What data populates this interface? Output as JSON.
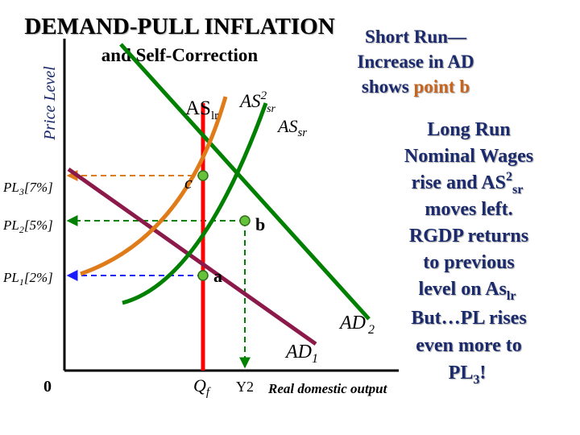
{
  "title": {
    "main": "DEMAND-PULL INFLATION",
    "sub": "and Self-Correction"
  },
  "axes": {
    "ylabel": "Price Level",
    "xlabel": "Real domestic output",
    "origin": "0"
  },
  "price_levels": {
    "pl3": {
      "base": "PL",
      "sub": "3",
      "rest": "[7%]"
    },
    "pl2": {
      "base": "PL",
      "sub": "2",
      "rest": "[5%]"
    },
    "pl1": {
      "base": "PL",
      "sub": "1",
      "rest": "[2%]"
    }
  },
  "output_levels": {
    "qf": {
      "base": "Q",
      "sub": "f"
    },
    "y2": "Y2"
  },
  "curves": {
    "aslr": {
      "base": "AS",
      "sub": "lr"
    },
    "as2sr": {
      "base": "AS",
      "sup": "2",
      "sub": "sr"
    },
    "assr": {
      "base": "AS",
      "sub": "sr"
    },
    "ad2": {
      "base": "AD",
      "sub": "2"
    },
    "ad1": {
      "base": "AD",
      "sub": "1"
    }
  },
  "points": {
    "a": "a",
    "b": "b",
    "c": "c"
  },
  "short_run": {
    "line1": "Short Run—",
    "line2": "Increase in AD",
    "line3_pre": "shows ",
    "line3_highlight": "point b"
  },
  "long_run": {
    "l1": "Long Run",
    "l2": "Nominal Wages",
    "l3_pre": "rise and AS",
    "l3_sup": "2",
    "l3_sub": "sr",
    "l4": "moves left.",
    "l5": "RGDP returns",
    "l6": "to previous",
    "l7_pre": "level on As",
    "l7_sub": "lr",
    "l8": "But…PL rises",
    "l9": "even more to",
    "l10_pre": "PL",
    "l10_sub": "3",
    "l10_post": "!"
  },
  "colors": {
    "title": "#000000",
    "short_run_text": "#1a2a6c",
    "point_b_highlight": "#c8641e",
    "long_run_text": "#1a2a6c",
    "aslr": "#ff0000",
    "as2sr": "#e07b1a",
    "assr": "#008000",
    "ad1": "#8b1a4a",
    "ad2": "#008000",
    "pl3_dash": "#e07b1a",
    "pl2_dash": "#008000",
    "pl1_dash": "#1a1aff",
    "y2_dash": "#008000",
    "point_fill": "#66c23a"
  }
}
